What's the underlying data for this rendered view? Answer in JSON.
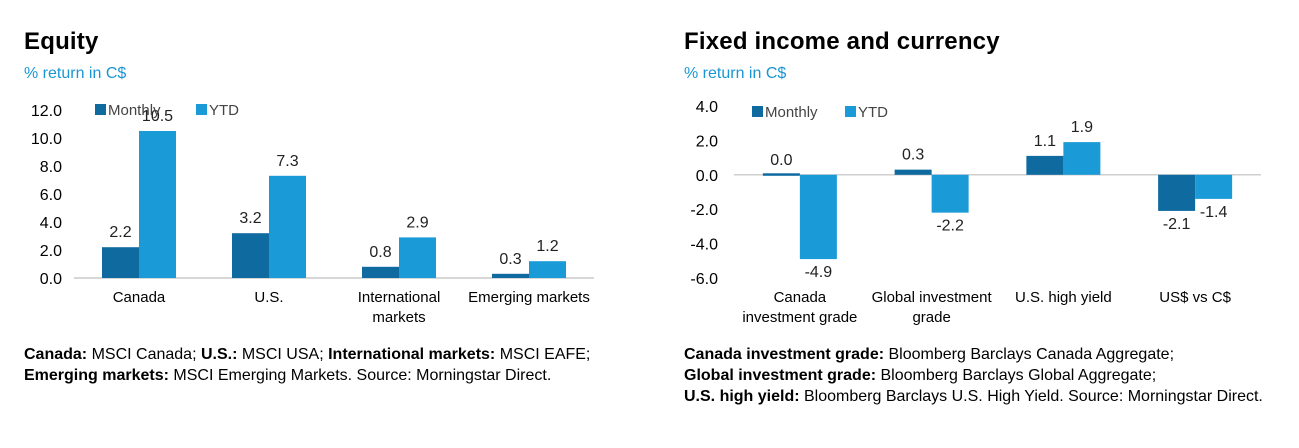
{
  "colors": {
    "monthly": "#0f6aa0",
    "ytd": "#1a9ad6",
    "accent": "#1a96d4",
    "axis": "#bfbfbf"
  },
  "chart_data": [
    {
      "type": "bar",
      "title": "Equity",
      "subtitle": "% return in C$",
      "categories": [
        "Canada",
        "U.S.",
        "International markets",
        "Emerging markets"
      ],
      "series": [
        {
          "name": "Monthly",
          "values": [
            2.2,
            3.2,
            0.8,
            0.3
          ]
        },
        {
          "name": "YTD",
          "values": [
            10.5,
            7.3,
            2.9,
            1.2
          ]
        }
      ],
      "ylim": [
        0,
        12
      ],
      "yticks": [
        "12.0",
        "10.0",
        "8.0",
        "6.0",
        "4.0",
        "2.0",
        "0.0"
      ],
      "legend": "top-left",
      "grid": false
    },
    {
      "type": "bar",
      "title": "Fixed income and currency",
      "subtitle": "% return in C$",
      "categories": [
        "Canada investment grade",
        "Global investment grade",
        "U.S. high yield",
        "US$ vs C$"
      ],
      "series": [
        {
          "name": "Monthly",
          "values": [
            0.0,
            0.3,
            1.1,
            -2.1
          ]
        },
        {
          "name": "YTD",
          "values": [
            -4.9,
            -2.2,
            1.9,
            -1.4
          ]
        }
      ],
      "ylim": [
        -6,
        4
      ],
      "yticks": [
        "4.0",
        "2.0",
        "0.0",
        "-2.0",
        "-4.0",
        "-6.0"
      ],
      "legend": "top-left",
      "grid": false
    }
  ],
  "equity": {
    "title": "Equity",
    "subtitle": "% return in C$",
    "tick_labels": [
      "12.0",
      "10.0",
      "8.0",
      "6.0",
      "4.0",
      "2.0",
      "0.0"
    ],
    "category_lines": [
      [
        "Canada"
      ],
      [
        "U.S."
      ],
      [
        "International",
        "markets"
      ],
      [
        "Emerging markets"
      ]
    ],
    "data_labels": {
      "monthly": [
        "2.2",
        "3.2",
        "0.8",
        "0.3"
      ],
      "ytd": [
        "10.5",
        "7.3",
        "2.9",
        "1.2"
      ]
    },
    "legend": [
      "Monthly",
      "YTD"
    ],
    "note": {
      "l1": "Canada:",
      "t1": " MSCI Canada; ",
      "l2": "U.S.:",
      "t2": " MSCI USA; ",
      "l3": "International markets:",
      "t3": " MSCI EAFE; ",
      "l4": "Emerging markets:",
      "t4": " MSCI Emerging Markets. Source: Morningstar Direct."
    }
  },
  "fixed": {
    "title": "Fixed income and currency",
    "subtitle": "% return in C$",
    "tick_labels": [
      "4.0",
      "2.0",
      "0.0",
      "-2.0",
      "-4.0",
      "-6.0"
    ],
    "category_lines": [
      [
        "Canada",
        "investment grade"
      ],
      [
        "Global investment",
        "grade"
      ],
      [
        "U.S. high yield"
      ],
      [
        "US$ vs C$"
      ]
    ],
    "data_labels": {
      "monthly": [
        "0.0",
        "0.3",
        "1.1",
        "-2.1"
      ],
      "ytd": [
        "-4.9",
        "-2.2",
        "1.9",
        "-1.4"
      ]
    },
    "legend": [
      "Monthly",
      "YTD"
    ],
    "note": {
      "l1": "Canada investment grade:",
      "t1": " Bloomberg Barclays Canada Aggregate;",
      "l2": "Global investment grade:",
      "t2": " Bloomberg Barclays Global Aggregate;",
      "l3": "U.S. high yield:",
      "t3": " Bloomberg Barclays U.S. High Yield. Source: Morningstar Direct."
    }
  }
}
